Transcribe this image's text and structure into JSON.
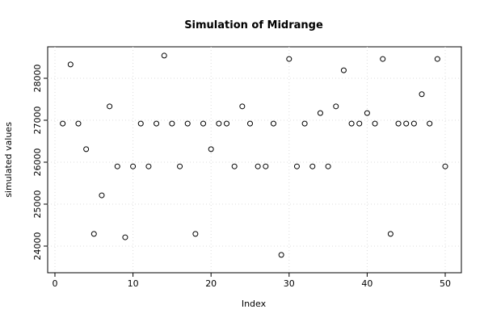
{
  "chart_data": {
    "type": "scatter",
    "title": "Simulation of Midrange",
    "x_label": "Index",
    "y_label": "simulated values",
    "x": [
      1,
      2,
      3,
      4,
      5,
      6,
      7,
      8,
      9,
      10,
      11,
      12,
      13,
      14,
      15,
      16,
      17,
      18,
      19,
      20,
      21,
      22,
      23,
      24,
      25,
      26,
      27,
      28,
      29,
      30,
      31,
      32,
      33,
      34,
      35,
      36,
      37,
      38,
      39,
      40,
      41,
      42,
      43,
      44,
      45,
      46,
      47,
      48,
      49,
      50
    ],
    "values": [
      26920,
      28330,
      26920,
      26310,
      24290,
      25210,
      27330,
      25900,
      24210,
      25900,
      26920,
      25900,
      26920,
      28540,
      26920,
      25900,
      26920,
      24290,
      26920,
      26310,
      26920,
      26920,
      25900,
      27330,
      26920,
      25900,
      25900,
      26920,
      23790,
      28460,
      25900,
      26920,
      25900,
      27170,
      25900,
      27330,
      28190,
      26920,
      26920,
      27170,
      26920,
      28460,
      24290,
      26920,
      26920,
      26920,
      27620,
      26920,
      28460,
      25900
    ],
    "color": "#000000",
    "xlim": [
      -0.93,
      52.07
    ],
    "ylim": [
      23365,
      28750
    ],
    "xticks": [
      0,
      10,
      20,
      30,
      40,
      50
    ],
    "yticks": [
      24000,
      25000,
      26000,
      27000,
      28000
    ],
    "grid": true
  }
}
